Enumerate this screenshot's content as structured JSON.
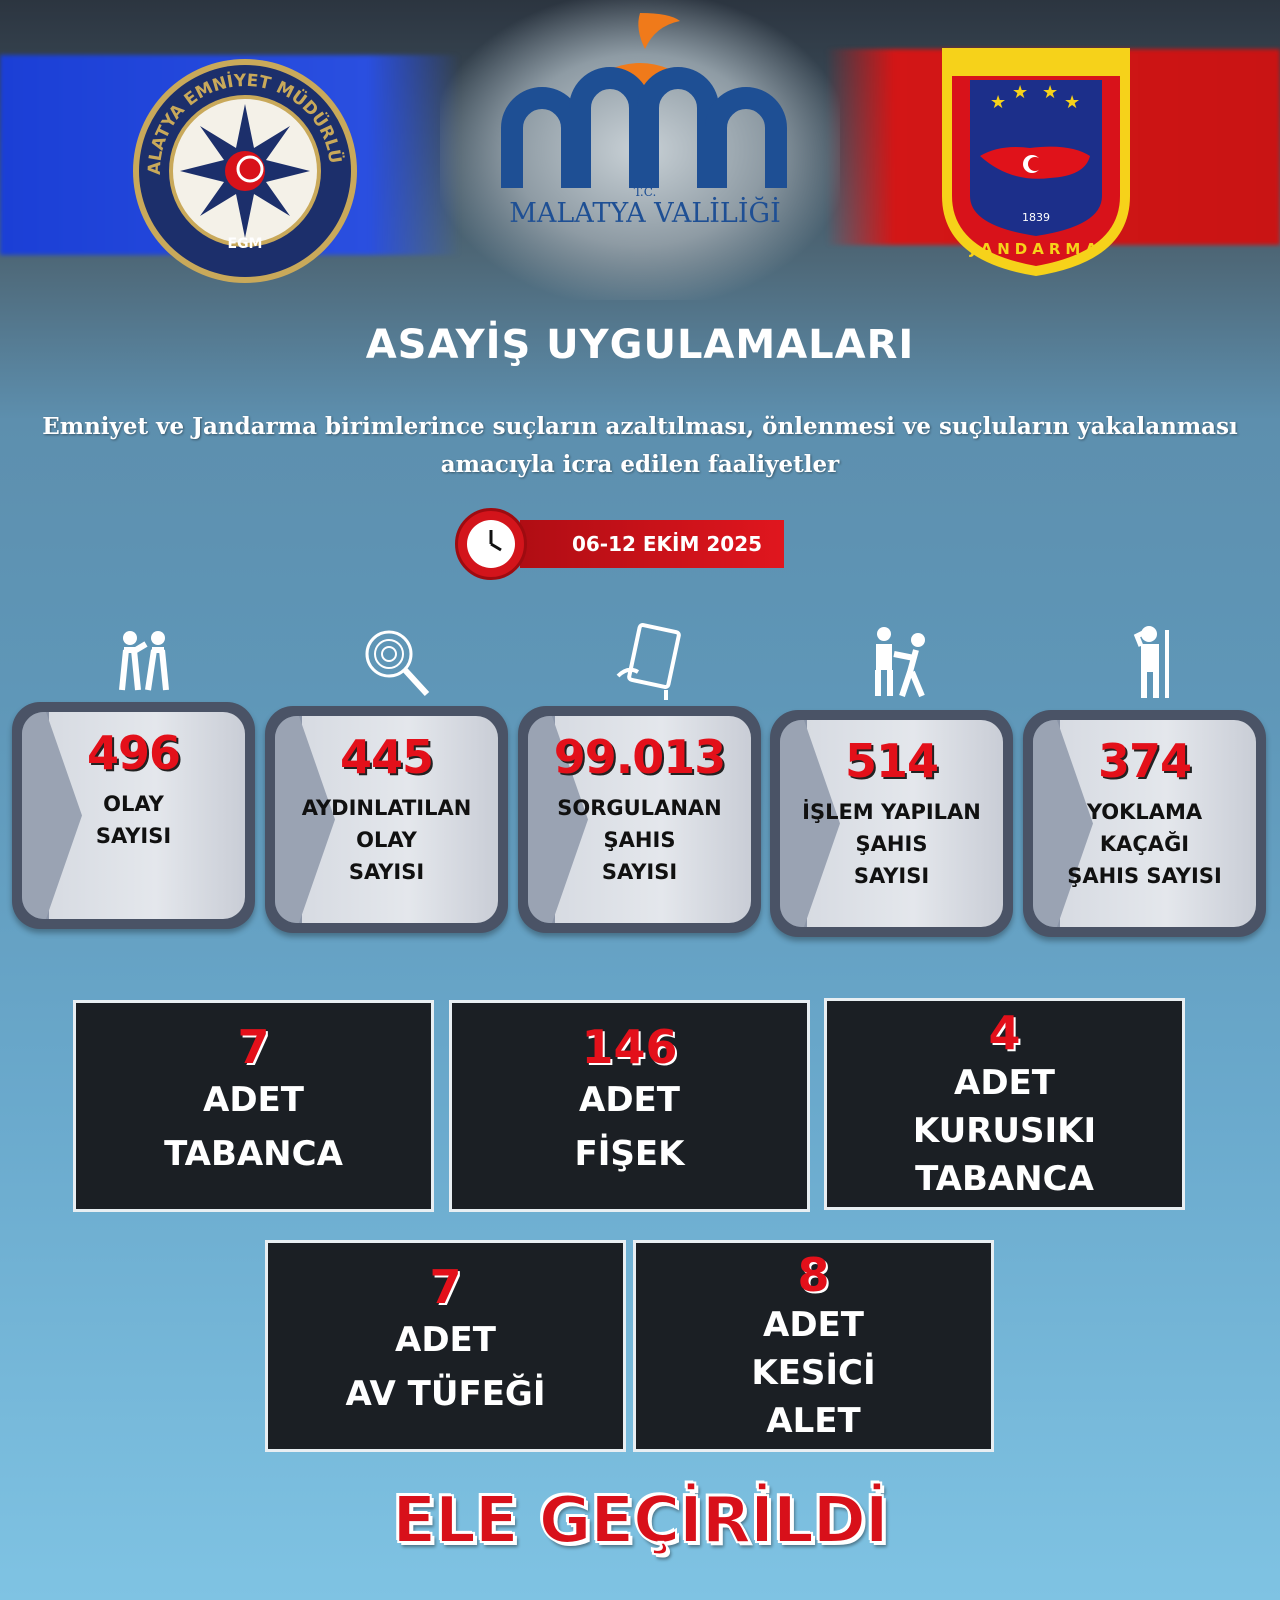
{
  "logos": {
    "left": {
      "name": "MALATYA EMNİYET MÜDÜRLÜĞÜ",
      "sub": "EGM"
    },
    "center": {
      "tc": "T.C.",
      "name": "MALATYA VALİLİĞİ"
    },
    "right": {
      "name": "JANDARMA",
      "year": "1839"
    }
  },
  "header": {
    "title": "ASAYİŞ UYGULAMALARI",
    "subtitle": "Emniyet ve Jandarma birimlerince suçların azaltılması, önlenmesi ve suçluların yakalanması amacıyla icra edilen faaliyetler",
    "date": "06-12 EKİM 2025"
  },
  "stats": [
    {
      "icon": "fight-icon",
      "value": "496",
      "label": "OLAY\nSAYISI"
    },
    {
      "icon": "fingerprint-search-icon",
      "value": "445",
      "label": "AYDINLATILAN\nOLAY\nSAYISI"
    },
    {
      "icon": "tablet-icon",
      "value": "99.013",
      "label": "SORGULANAN\nŞAHIS\nSAYISI"
    },
    {
      "icon": "arrest-icon",
      "value": "514",
      "label": "İŞLEM YAPILAN\nŞAHIS\nSAYISI"
    },
    {
      "icon": "soldier-salute-icon",
      "value": "374",
      "label": "YOKLAMA\nKAÇAĞI\nŞAHIS SAYISI"
    }
  ],
  "seized": [
    {
      "value": "7",
      "label": "ADET\nTABANCA"
    },
    {
      "value": "146",
      "label": "ADET\nFİŞEK"
    },
    {
      "value": "4",
      "label": "ADET\nKURUSIKI\nTABANCA"
    },
    {
      "value": "7",
      "label": "ADET\nAV TÜFEĞİ"
    },
    {
      "value": "8",
      "label": "ADET\nKESİCİ\nALET"
    }
  ],
  "footer": {
    "text": "ELE GEÇİRİLDİ"
  },
  "colors": {
    "accent_red": "#e3101a",
    "police_blue": "#1b3fd6",
    "jandarma_red": "#d31616",
    "valilik_blue": "#1e4f94",
    "valilik_orange": "#f07a1a"
  }
}
